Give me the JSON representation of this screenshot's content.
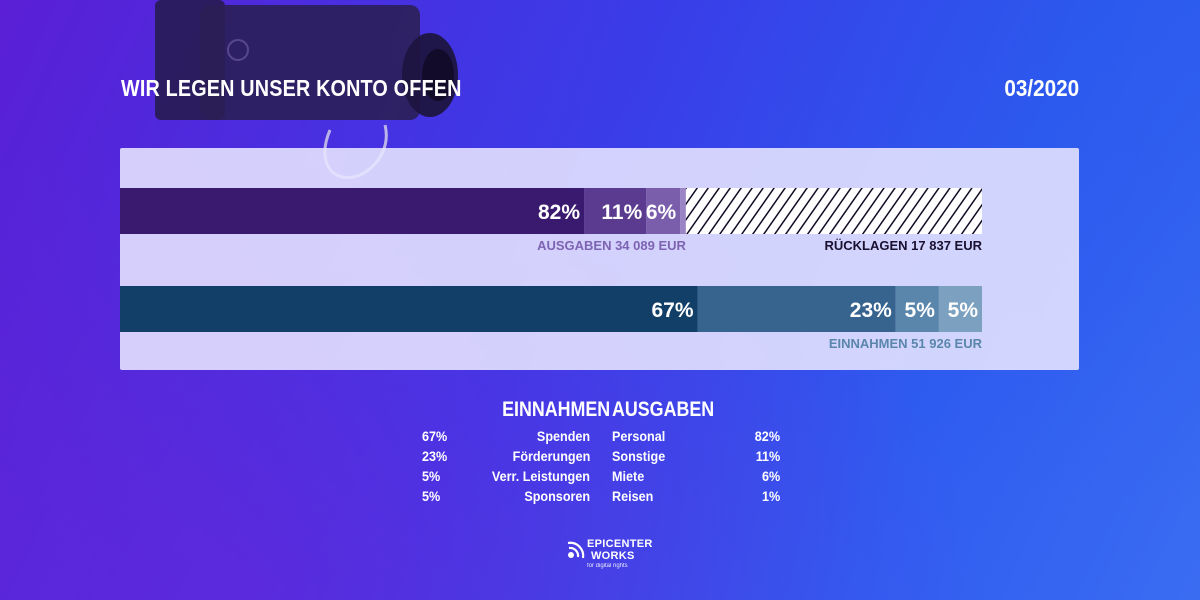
{
  "header": {
    "title": "WIR LEGEN UNSER KONTO OFFEN",
    "date": "03/2020"
  },
  "chart_data": {
    "type": "bar",
    "orientation": "horizontal-stacked",
    "xlim": [
      0,
      51926
    ],
    "bars": [
      {
        "key": "ausgaben",
        "total_label": "AUSGABEN 34 089 EUR",
        "total": 34089,
        "segments": [
          {
            "name": "Personal",
            "percent": 82,
            "label": "82%",
            "color": "#3a1a6e"
          },
          {
            "name": "Sonstige",
            "percent": 11,
            "label": "11%",
            "color": "#5a3b8f"
          },
          {
            "name": "Miete",
            "percent": 6,
            "label": "6%",
            "color": "#7a5eab"
          },
          {
            "name": "Reisen",
            "percent": 1,
            "label": "",
            "color": "#9a84c4"
          }
        ],
        "remainder": {
          "label": "RÜCKLAGEN  17 837 EUR",
          "value": 17837,
          "pattern": "hatched"
        }
      },
      {
        "key": "einnahmen",
        "total_label": "EINNAHMEN 51 926 EUR",
        "total": 51926,
        "segments": [
          {
            "name": "Spenden",
            "percent": 67,
            "label": "67%",
            "color": "#123f68"
          },
          {
            "name": "Förderungen",
            "percent": 23,
            "label": "23%",
            "color": "#36648f"
          },
          {
            "name": "Verr. Leistungen",
            "percent": 5,
            "label": "5%",
            "color": "#5b86ab"
          },
          {
            "name": "Sponsoren",
            "percent": 5,
            "label": "5%",
            "color": "#7ba0c0"
          }
        ]
      }
    ],
    "colors": {
      "ausgaben_label": "#7d63b2",
      "einnahmen_label": "#5b86ab",
      "ruecklagen_label": "#1a1030"
    }
  },
  "legend": {
    "einnahmen_title": "EINNAHMEN",
    "ausgaben_title": "AUSGABEN",
    "rows": [
      {
        "in_pct": "67%",
        "in_label": "Spenden",
        "out_label": "Personal",
        "out_pct": "82%"
      },
      {
        "in_pct": "23%",
        "in_label": "Förderungen",
        "out_label": "Sonstige",
        "out_pct": "11%"
      },
      {
        "in_pct": "5%",
        "in_label": "Verr. Leistungen",
        "out_label": "Miete",
        "out_pct": "6%"
      },
      {
        "in_pct": "5%",
        "in_label": "Sponsoren",
        "out_label": "Reisen",
        "out_pct": "1%"
      }
    ]
  },
  "logo": {
    "line1": "EPICENTER",
    "line2": "WORKS",
    "tagline": "for digital rights"
  }
}
